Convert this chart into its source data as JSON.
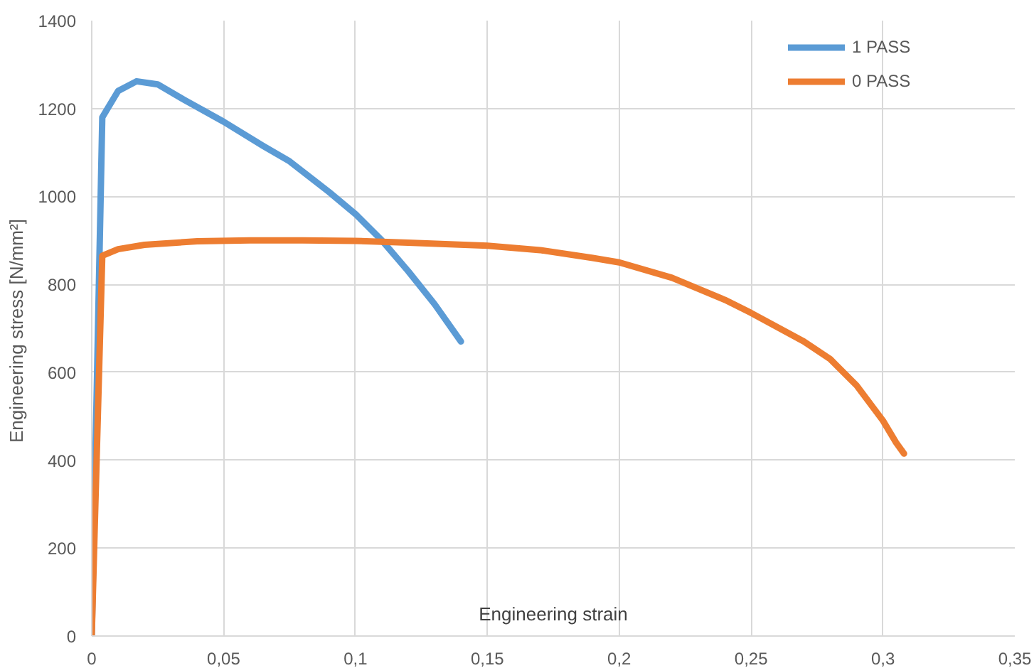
{
  "chart_data": {
    "type": "line",
    "xlabel": "Engineering strain",
    "ylabel": "Engineering stress  [N/mm²]",
    "series": [
      {
        "name": "1 PASS",
        "color": "#5b9bd5",
        "x": [
          0,
          0.004,
          0.01,
          0.017,
          0.025,
          0.035,
          0.05,
          0.065,
          0.075,
          0.09,
          0.1,
          0.11,
          0.12,
          0.13,
          0.14
        ],
        "values": [
          0,
          1180,
          1240,
          1262,
          1255,
          1220,
          1170,
          1115,
          1080,
          1010,
          960,
          900,
          830,
          755,
          670
        ]
      },
      {
        "name": "0 PASS",
        "color": "#ed7d31",
        "x": [
          0,
          0.004,
          0.01,
          0.02,
          0.04,
          0.06,
          0.08,
          0.1,
          0.12,
          0.15,
          0.17,
          0.19,
          0.2,
          0.22,
          0.24,
          0.25,
          0.27,
          0.28,
          0.29,
          0.3,
          0.305,
          0.308
        ],
        "values": [
          0,
          865,
          880,
          890,
          898,
          900,
          900,
          899,
          895,
          888,
          878,
          860,
          850,
          815,
          765,
          735,
          670,
          630,
          570,
          490,
          440,
          415
        ]
      }
    ],
    "xlim": [
      0,
      0.35
    ],
    "ylim": [
      0,
      1400
    ],
    "xticks": [
      0,
      {
        "value": 0.05,
        "label": "0,05"
      },
      {
        "value": 0.1,
        "label": "0,1"
      },
      {
        "value": 0.15,
        "label": "0,15"
      },
      {
        "value": 0.2,
        "label": "0,2"
      },
      {
        "value": 0.25,
        "label": "0,25"
      },
      {
        "value": 0.3,
        "label": "0,3"
      },
      {
        "value": 0.35,
        "label": "0,35"
      }
    ],
    "yticks": [
      0,
      200,
      400,
      600,
      800,
      1000,
      1200,
      1400
    ],
    "grid": true,
    "legend": "top right",
    "line_style": "solid",
    "marker": "none"
  }
}
